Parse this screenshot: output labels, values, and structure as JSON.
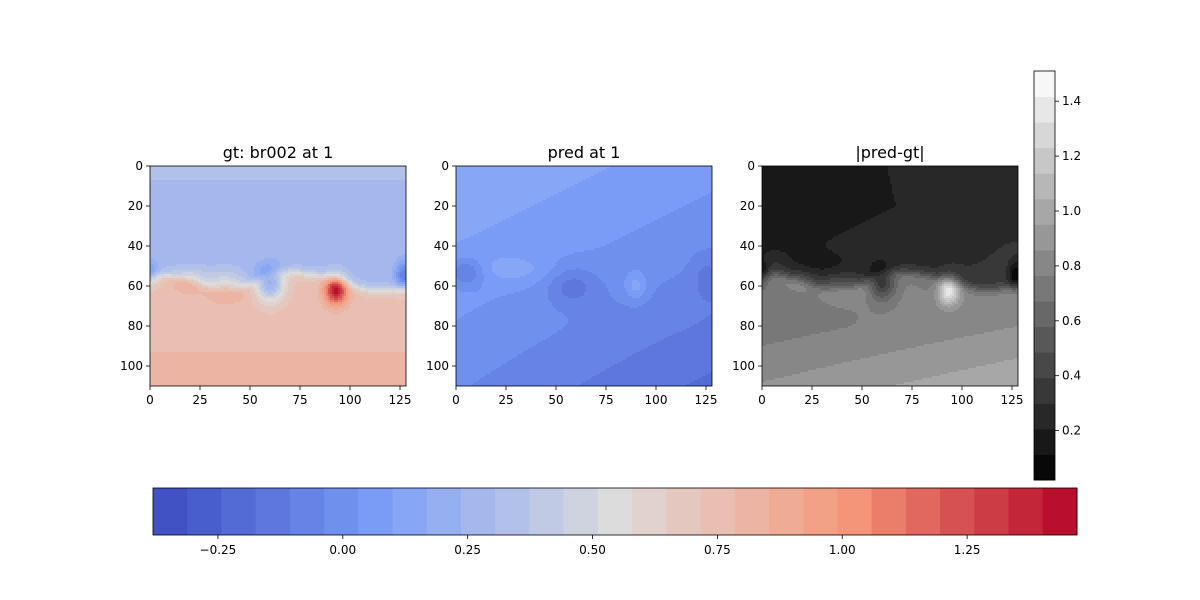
{
  "figure": {
    "panels": [
      {
        "title": "gt: br002 at 1",
        "kind": "gt",
        "cmap": "coolwarm"
      },
      {
        "title": "pred at 1",
        "kind": "pred",
        "cmap": "coolwarm"
      },
      {
        "title": "|pred-gt|",
        "kind": "diff",
        "cmap": "gray"
      }
    ]
  },
  "chart_data": [
    {
      "type": "heatmap",
      "title": "gt: br002 at 1",
      "xlim": [
        0,
        128
      ],
      "ylim": [
        110,
        0
      ],
      "xticks": [
        0,
        25,
        50,
        75,
        100,
        125
      ],
      "yticks": [
        0,
        20,
        40,
        60,
        80,
        100
      ],
      "value_range": [
        -0.38,
        1.47
      ],
      "approx_field": {
        "upper_region_value": 0.3,
        "interface_row": 60,
        "lower_region_value": 0.78,
        "bottom_value": 0.85,
        "vortices": [
          {
            "x": 20,
            "y": 57,
            "value": 0.95
          },
          {
            "x": 38,
            "y": 60,
            "value": 1.0
          },
          {
            "x": 60,
            "y": 59,
            "value": -0.15
          },
          {
            "x": 93,
            "y": 62,
            "value": 1.45
          },
          {
            "x": 127,
            "y": 55,
            "value": -0.1
          }
        ]
      }
    },
    {
      "type": "heatmap",
      "title": "pred at 1",
      "xlim": [
        0,
        128
      ],
      "ylim": [
        110,
        0
      ],
      "xticks": [
        0,
        25,
        50,
        75,
        100,
        125
      ],
      "yticks": [
        0,
        20,
        40,
        60,
        80,
        100
      ],
      "value_range": [
        -0.38,
        1.47
      ],
      "approx_field": {
        "top_value": 0.15,
        "bottom_value": -0.05,
        "features": [
          {
            "x": 5,
            "y": 53,
            "value": -0.15
          },
          {
            "x": 58,
            "y": 60,
            "value": -0.1
          },
          {
            "x": 90,
            "y": 60,
            "value": 0.2
          }
        ]
      }
    },
    {
      "type": "heatmap",
      "title": "|pred-gt|",
      "xlim": [
        0,
        128
      ],
      "ylim": [
        110,
        0
      ],
      "xticks": [
        0,
        25,
        50,
        75,
        100,
        125
      ],
      "yticks": [
        0,
        20,
        40,
        60,
        80,
        100
      ],
      "value_range": [
        0.02,
        1.51
      ],
      "approx_field": {
        "upper_region_value": 0.1,
        "lower_region_value": 0.8,
        "bottom_right_value": 0.9,
        "features": [
          {
            "x": 20,
            "y": 57,
            "value": 1.15
          },
          {
            "x": 60,
            "y": 59,
            "value": 0.05
          },
          {
            "x": 93,
            "y": 61,
            "value": 1.5
          }
        ]
      }
    }
  ],
  "colorbars": {
    "horizontal": {
      "cmap": "coolwarm",
      "range": [
        -0.38,
        1.47
      ],
      "levels": 27,
      "ticks": [
        -0.25,
        0.0,
        0.25,
        0.5,
        0.75,
        1.0,
        1.25
      ],
      "tick_labels": [
        "−0.25",
        "0.00",
        "0.25",
        "0.50",
        "0.75",
        "1.00",
        "1.25"
      ]
    },
    "vertical": {
      "cmap": "gray",
      "range": [
        0.02,
        1.51
      ],
      "levels": 16,
      "ticks": [
        0.2,
        0.4,
        0.6,
        0.8,
        1.0,
        1.2,
        1.4
      ],
      "tick_labels": [
        "0.2",
        "0.4",
        "0.6",
        "0.8",
        "1.0",
        "1.2",
        "1.4"
      ]
    }
  }
}
